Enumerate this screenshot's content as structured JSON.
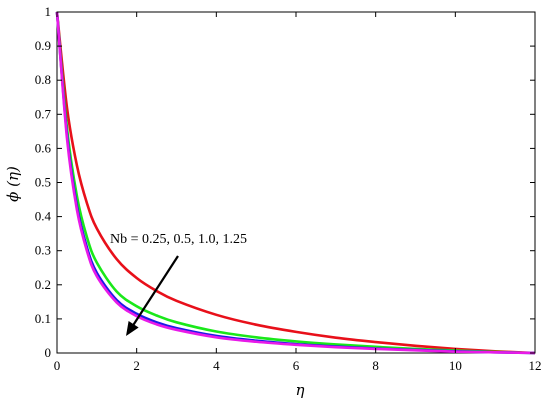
{
  "chart_data": {
    "type": "line",
    "xlabel": "η",
    "ylabel": "ϕ (η)",
    "xlim": [
      0,
      12
    ],
    "ylim": [
      0,
      1
    ],
    "xticks": [
      "0",
      "2",
      "4",
      "6",
      "8",
      "10",
      "12"
    ],
    "yticks": [
      "0",
      "0.1",
      "0.2",
      "0.3",
      "0.4",
      "0.5",
      "0.6",
      "0.7",
      "0.8",
      "0.9",
      "1"
    ],
    "grid": false,
    "annotation": "Nb = 0.25, 0.5, 1.0, 1.25",
    "series": [
      {
        "color": "#e8101a",
        "x": [
          0,
          0.25,
          0.5,
          0.75,
          1.0,
          1.5,
          2.0,
          2.5,
          3.0,
          4.0,
          5.0,
          6.0,
          7.0,
          8.0,
          9.0,
          10.0,
          11.0,
          12.0
        ],
        "y": [
          1.0,
          0.72,
          0.55,
          0.44,
          0.365,
          0.275,
          0.22,
          0.182,
          0.153,
          0.112,
          0.083,
          0.062,
          0.045,
          0.032,
          0.021,
          0.012,
          0.005,
          0.0
        ]
      },
      {
        "color": "#1ae81a",
        "x": [
          0,
          0.25,
          0.5,
          0.75,
          1.0,
          1.5,
          2.0,
          2.5,
          3.0,
          4.0,
          5.0,
          6.0,
          7.0,
          8.0,
          9.0,
          10.0,
          11.0,
          12.0
        ],
        "y": [
          1.0,
          0.66,
          0.46,
          0.34,
          0.265,
          0.18,
          0.137,
          0.11,
          0.09,
          0.063,
          0.046,
          0.034,
          0.025,
          0.018,
          0.012,
          0.007,
          0.003,
          0.0
        ]
      },
      {
        "color": "#1a1ae8",
        "x": [
          0,
          0.25,
          0.5,
          0.75,
          1.0,
          1.5,
          2.0,
          2.5,
          3.0,
          4.0,
          5.0,
          6.0,
          7.0,
          8.0,
          9.0,
          10.0,
          11.0,
          12.0
        ],
        "y": [
          1.0,
          0.64,
          0.43,
          0.31,
          0.235,
          0.155,
          0.115,
          0.09,
          0.073,
          0.05,
          0.036,
          0.026,
          0.019,
          0.013,
          0.009,
          0.005,
          0.002,
          0.0
        ]
      },
      {
        "color": "#e81ae8",
        "x": [
          0,
          0.25,
          0.5,
          0.75,
          1.0,
          1.5,
          2.0,
          2.5,
          3.0,
          4.0,
          5.0,
          6.0,
          7.0,
          8.0,
          9.0,
          10.0,
          11.0,
          12.0
        ],
        "y": [
          1.0,
          0.63,
          0.42,
          0.3,
          0.225,
          0.148,
          0.108,
          0.084,
          0.068,
          0.046,
          0.033,
          0.024,
          0.017,
          0.012,
          0.008,
          0.004,
          0.002,
          0.0
        ]
      }
    ]
  }
}
